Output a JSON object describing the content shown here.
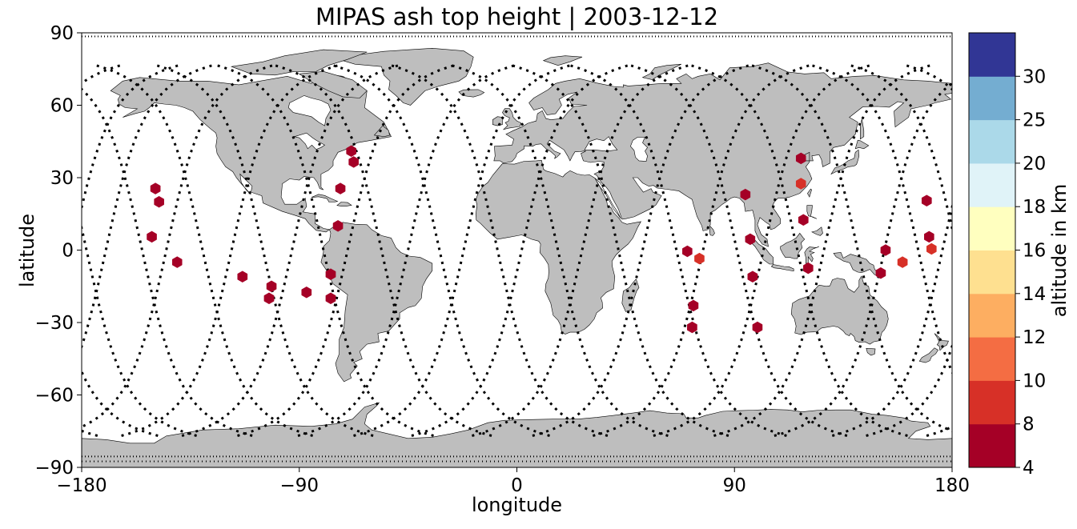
{
  "chart_data": {
    "type": "scatter",
    "title": "MIPAS ash top height | 2003-12-12",
    "xlabel": "longitude",
    "ylabel": "latitude",
    "xlim": [
      -180,
      180
    ],
    "ylim": [
      -90,
      90
    ],
    "xticks": [
      -180,
      -90,
      0,
      90,
      180
    ],
    "xtick_labels": [
      "−180",
      "−90",
      "0",
      "90",
      "180"
    ],
    "yticks": [
      -90,
      -60,
      -30,
      0,
      30,
      60,
      90
    ],
    "ytick_labels": [
      "−90",
      "−60",
      "−30",
      "0",
      "30",
      "60",
      "90"
    ],
    "grid": false,
    "land_color": "#bebebe",
    "track_color": "#000000",
    "colorbar": {
      "label": "altitude in km",
      "bounds": [
        4,
        8,
        10,
        12,
        14,
        16,
        18,
        20,
        25,
        30
      ],
      "colors": [
        "#a50026",
        "#d73027",
        "#f46d43",
        "#fdae61",
        "#fee090",
        "#ffffbf",
        "#e0f3f8",
        "#abd9e9",
        "#74add1",
        "#313695"
      ]
    },
    "points": [
      {
        "lon": -149.5,
        "lat": 25.5,
        "alt": 5
      },
      {
        "lon": -148.0,
        "lat": 20.0,
        "alt": 5
      },
      {
        "lon": -151.0,
        "lat": 5.5,
        "alt": 5
      },
      {
        "lon": -140.5,
        "lat": -5.0,
        "alt": 5
      },
      {
        "lon": -113.5,
        "lat": -11.0,
        "alt": 5
      },
      {
        "lon": -101.5,
        "lat": -15.0,
        "alt": 5
      },
      {
        "lon": -102.5,
        "lat": -20.0,
        "alt": 5
      },
      {
        "lon": -87.0,
        "lat": -17.5,
        "alt": 5
      },
      {
        "lon": -77.0,
        "lat": -10.0,
        "alt": 5
      },
      {
        "lon": -77.0,
        "lat": -20.0,
        "alt": 5
      },
      {
        "lon": -74.0,
        "lat": 10.0,
        "alt": 5
      },
      {
        "lon": -73.0,
        "lat": 25.5,
        "alt": 5
      },
      {
        "lon": -68.5,
        "lat": 41.0,
        "alt": 5
      },
      {
        "lon": -67.5,
        "lat": 36.5,
        "alt": 5
      },
      {
        "lon": 70.5,
        "lat": -0.5,
        "alt": 5
      },
      {
        "lon": 73.0,
        "lat": -23.0,
        "alt": 5
      },
      {
        "lon": 72.5,
        "lat": -32.0,
        "alt": 5
      },
      {
        "lon": 75.5,
        "lat": -3.5,
        "alt": 9
      },
      {
        "lon": 94.5,
        "lat": 23.0,
        "alt": 5
      },
      {
        "lon": 96.5,
        "lat": 4.5,
        "alt": 5
      },
      {
        "lon": 97.5,
        "lat": -11.0,
        "alt": 5
      },
      {
        "lon": 99.5,
        "lat": -32.0,
        "alt": 5
      },
      {
        "lon": 117.5,
        "lat": 38.0,
        "alt": 5
      },
      {
        "lon": 117.5,
        "lat": 27.5,
        "alt": 9
      },
      {
        "lon": 118.5,
        "lat": 12.5,
        "alt": 5
      },
      {
        "lon": 120.5,
        "lat": -7.5,
        "alt": 5
      },
      {
        "lon": 150.5,
        "lat": -9.5,
        "alt": 5
      },
      {
        "lon": 152.5,
        "lat": 0.0,
        "alt": 5
      },
      {
        "lon": 159.5,
        "lat": -5.0,
        "alt": 9
      },
      {
        "lon": 169.5,
        "lat": 20.5,
        "alt": 5
      },
      {
        "lon": 170.5,
        "lat": 5.5,
        "alt": 5
      },
      {
        "lon": 171.5,
        "lat": 0.5,
        "alt": 9
      }
    ]
  }
}
